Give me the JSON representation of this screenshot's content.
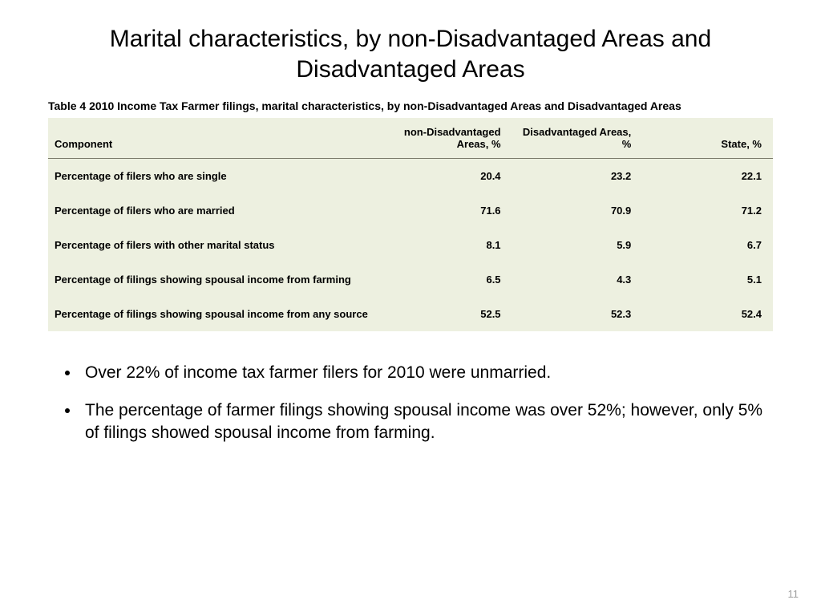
{
  "title": "Marital characteristics, by non-Disadvantaged Areas and Disadvantaged Areas",
  "table": {
    "caption": "Table 4 2010 Income Tax Farmer filings, marital characteristics, by non-Disadvantaged Areas and Disadvantaged Areas",
    "background_color": "#edf0e0",
    "header_border_color": "#7a7a6a",
    "font_size": 13,
    "columns": [
      "Component",
      "non-Disadvantaged Areas, %",
      "Disadvantaged Areas, %",
      "State, %"
    ],
    "rows": [
      {
        "label": "Percentage of filers who are single",
        "nda": "20.4",
        "da": "23.2",
        "state": "22.1"
      },
      {
        "label": "Percentage of filers who are married",
        "nda": "71.6",
        "da": "70.9",
        "state": "71.2"
      },
      {
        "label": "Percentage of filers with other marital status",
        "nda": "8.1",
        "da": "5.9",
        "state": "6.7"
      },
      {
        "label": "Percentage of filings showing spousal income from farming",
        "nda": "6.5",
        "da": "4.3",
        "state": "5.1"
      },
      {
        "label": "Percentage of filings showing spousal income from any source",
        "nda": "52.5",
        "da": "52.3",
        "state": "52.4"
      }
    ]
  },
  "bullets": [
    "Over 22% of income tax farmer filers for 2010 were unmarried.",
    "The percentage of farmer filings showing spousal income was over 52%; however, only 5% of filings showed spousal income from farming."
  ],
  "page_number": "11",
  "colors": {
    "page_background": "#ffffff",
    "text": "#000000",
    "page_num": "#a0a0a0"
  }
}
